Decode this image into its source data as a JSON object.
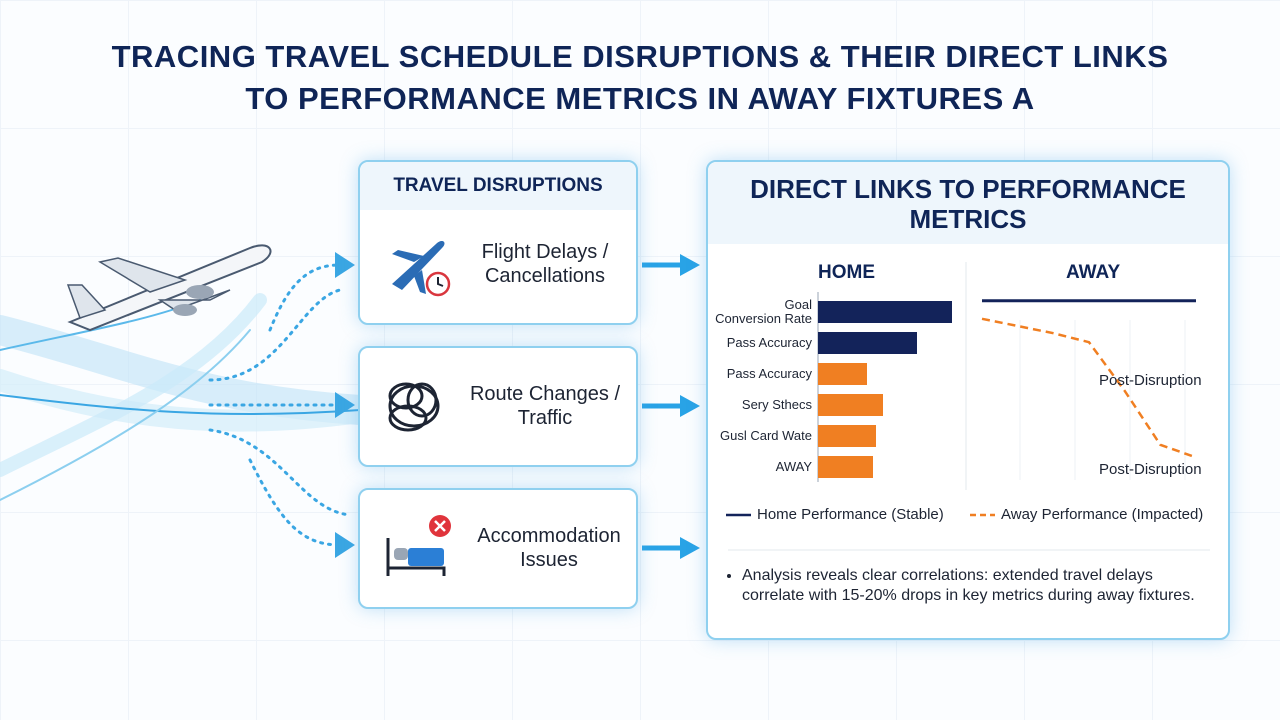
{
  "title": "TRACING TRAVEL SCHEDULE DISRUPTIONS & THEIR DIRECT LINKS TO PERFORMANCE METRICS IN AWAY FIXTURES A",
  "disruptions": {
    "title": "TRAVEL DISRUPTIONS",
    "items": [
      "Flight Delays / Cancellations",
      "Route Changes / Traffic",
      "Accommodation Issues"
    ]
  },
  "metrics_panel": {
    "title": "DIRECT LINKS TO PERFORMANCE METRICS",
    "note": "Analysis reveals clear correlations: extended travel delays correlate with 15-20% drops in key metrics during away fixtures."
  },
  "chart_data": [
    {
      "type": "hbar",
      "title": "HOME",
      "categories": [
        "Goal\nConversion Rate",
        "Pass Accuracy",
        "Pass Accuracy",
        "Sery Sthecs",
        "Gusl Card Wate",
        "AWAY"
      ],
      "values": [
        134,
        99,
        49,
        65,
        58,
        55
      ],
      "colors": [
        "#13235a",
        "#13235a",
        "#f07f22",
        "#f07f22",
        "#f07f22",
        "#f07f22"
      ],
      "xlim": [
        0,
        150
      ]
    },
    {
      "type": "line",
      "title": "AWAY",
      "x": [
        0,
        1,
        2,
        3,
        4,
        5,
        6
      ],
      "xlim": [
        0,
        6
      ],
      "ylim": [
        0,
        100
      ],
      "series": [
        {
          "name": "Home Performance (Stable)",
          "color": "#13235a",
          "style": "solid",
          "values": [
            94,
            94,
            94,
            94,
            94,
            94,
            94
          ]
        },
        {
          "name": "Away Performance (Impacted)",
          "color": "#f07f22",
          "style": "dashed",
          "values": [
            84,
            80,
            76,
            71,
            44,
            14,
            7
          ]
        }
      ],
      "annotations": [
        "Post-Disruption",
        "Post-Disruption"
      ]
    }
  ]
}
